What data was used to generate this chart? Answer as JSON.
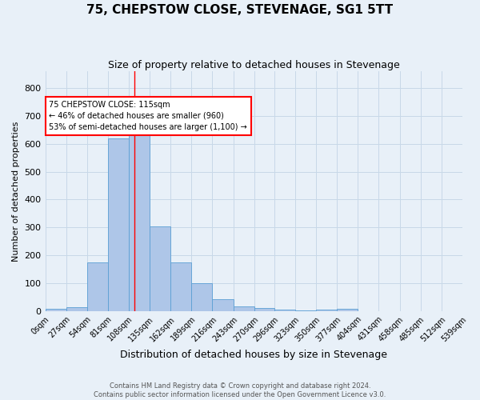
{
  "title": "75, CHEPSTOW CLOSE, STEVENAGE, SG1 5TT",
  "subtitle": "Size of property relative to detached houses in Stevenage",
  "xlabel": "Distribution of detached houses by size in Stevenage",
  "ylabel": "Number of detached properties",
  "bin_edges": [
    0,
    27,
    54,
    81,
    108,
    135,
    162,
    189,
    216,
    243,
    270,
    296,
    323,
    350,
    377,
    404,
    431,
    458,
    485,
    512,
    539
  ],
  "bin_labels": [
    "0sqm",
    "27sqm",
    "54sqm",
    "81sqm",
    "108sqm",
    "135sqm",
    "162sqm",
    "189sqm",
    "216sqm",
    "243sqm",
    "270sqm",
    "296sqm",
    "323sqm",
    "350sqm",
    "377sqm",
    "404sqm",
    "431sqm",
    "458sqm",
    "485sqm",
    "512sqm",
    "539sqm"
  ],
  "bar_heights": [
    8,
    15,
    175,
    620,
    650,
    305,
    175,
    100,
    42,
    18,
    10,
    5,
    3,
    5,
    8,
    0,
    0,
    0,
    0,
    0
  ],
  "bar_color": "#aec6e8",
  "bar_edge_color": "#5a9fd4",
  "grid_color": "#c8d8e8",
  "bg_color": "#e8f0f8",
  "red_line_x": 115,
  "annotation_text": "75 CHEPSTOW CLOSE: 115sqm\n← 46% of detached houses are smaller (960)\n53% of semi-detached houses are larger (1,100) →",
  "annotation_box_color": "white",
  "annotation_box_edge": "red",
  "ylim": [
    0,
    860
  ],
  "yticks": [
    0,
    100,
    200,
    300,
    400,
    500,
    600,
    700,
    800
  ],
  "footer_line1": "Contains HM Land Registry data © Crown copyright and database right 2024.",
  "footer_line2": "Contains public sector information licensed under the Open Government Licence v3.0."
}
